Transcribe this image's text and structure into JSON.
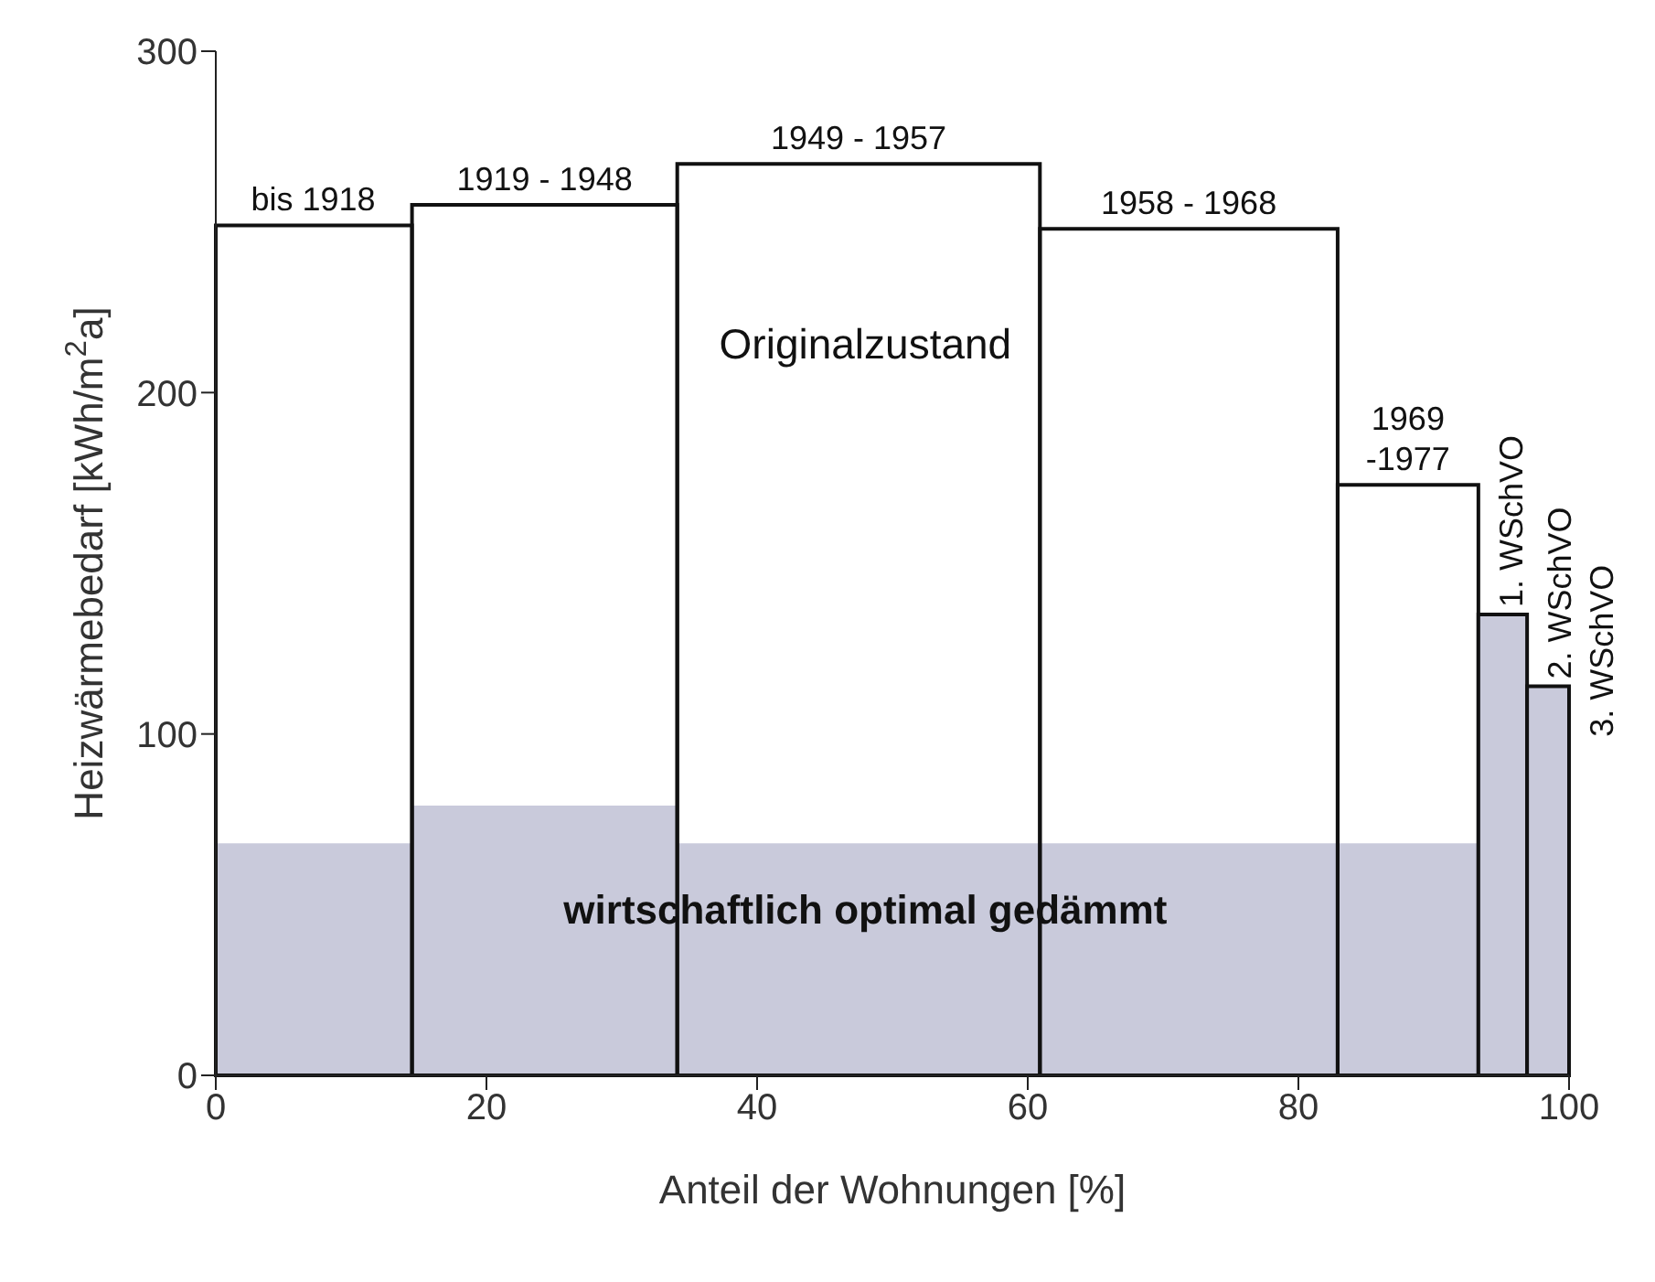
{
  "chart_data": {
    "type": "histogram",
    "bins": [
      0,
      14.5,
      34.1,
      60.9,
      82.9,
      93.3,
      96.9,
      100
    ],
    "series": [
      {
        "name": "wirtschaftlich optimal gedämmt",
        "color": "#c9cadb",
        "values": [
          68,
          79,
          68,
          68,
          68,
          null,
          null
        ]
      },
      {
        "name": "Originalzustand",
        "color": "#111111",
        "colors": [
          null,
          null,
          null,
          null,
          null,
          "#c9cadb",
          "#c9cadb"
        ],
        "values": [
          249,
          255,
          267,
          248,
          173,
          135,
          114
        ]
      }
    ],
    "xlabel": "Anteil der Wohnungen [%]",
    "ylabel": "Heizwärmebedarf  [kWh/m$^{2}$a]",
    "xlim": [
      0,
      100
    ],
    "xticks": [
      0,
      20,
      40,
      60,
      80,
      100
    ],
    "ylim": [
      0,
      300
    ],
    "yticks": [
      0,
      100,
      200,
      300
    ],
    "annotations": [
      {
        "text": "bis 1918",
        "x": 7.2,
        "y": 249
      },
      {
        "text": "1919 - 1948",
        "x": 24.3,
        "y": 255
      },
      {
        "text": "1949 - 1957",
        "x": 47.5,
        "y": 267
      },
      {
        "text": "1958 - 1968",
        "x": 71.9,
        "y": 248
      },
      {
        "text": "1969\n-1977",
        "x": 88.1,
        "y": 173
      },
      {
        "text": "1. WSchVO",
        "x": 93.3,
        "y": 135
      },
      {
        "text": "2. WSchVO",
        "x": 96.9,
        "y": 114
      },
      {
        "text": "3. WSchVO",
        "x": 100,
        "y": 97
      }
    ]
  }
}
